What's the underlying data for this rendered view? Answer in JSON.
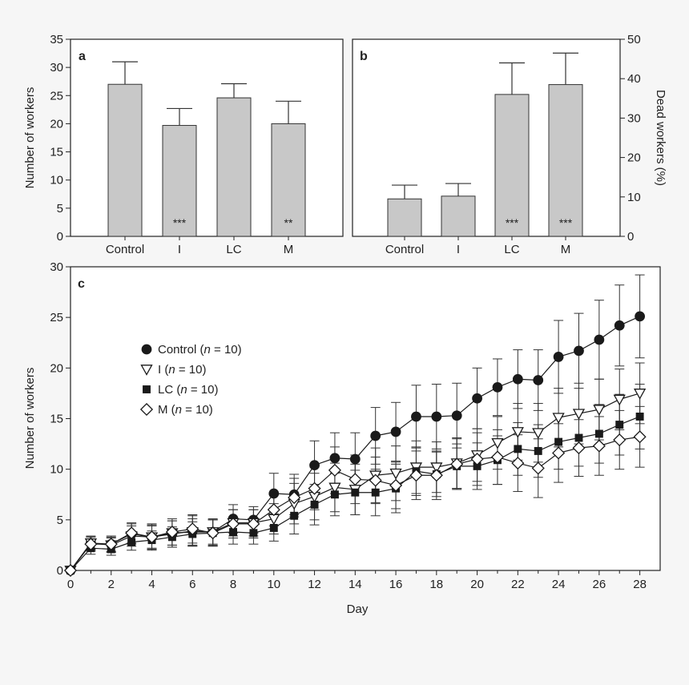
{
  "chart_data": [
    {
      "type": "bar",
      "panel": "a",
      "categories": [
        "Control",
        "I",
        "LC",
        "M"
      ],
      "values": [
        27.0,
        19.7,
        24.6,
        20.0
      ],
      "errors": [
        4.0,
        3.0,
        2.5,
        4.0
      ],
      "annotations": [
        "",
        "***",
        "",
        "**"
      ],
      "ylabel": "Number of workers",
      "ylim": [
        0,
        35
      ],
      "yticks": [
        0,
        5,
        10,
        15,
        20,
        25,
        30,
        35
      ],
      "bar_color": "#c8c8c8"
    },
    {
      "type": "bar",
      "panel": "b",
      "categories": [
        "Control",
        "I",
        "LC",
        "M"
      ],
      "values": [
        9.5,
        10.2,
        36.0,
        38.5
      ],
      "errors": [
        3.5,
        3.2,
        8.0,
        8.0
      ],
      "annotations": [
        "",
        "",
        "***",
        "***"
      ],
      "ylabel": "Dead workers (%)",
      "ylim": [
        0,
        50
      ],
      "yticks": [
        0,
        10,
        20,
        30,
        40,
        50
      ],
      "bar_color": "#c8c8c8"
    },
    {
      "type": "line",
      "panel": "c",
      "xlabel": "Day",
      "ylabel": "Number of workers",
      "xlim": [
        0,
        29
      ],
      "ylim": [
        0,
        30
      ],
      "xticks": [
        0,
        2,
        4,
        6,
        8,
        10,
        12,
        14,
        16,
        18,
        20,
        22,
        24,
        26,
        28
      ],
      "yticks": [
        0,
        5,
        10,
        15,
        20,
        25,
        30
      ],
      "x": [
        0,
        1,
        2,
        3,
        4,
        5,
        6,
        7,
        8,
        9,
        10,
        11,
        12,
        13,
        14,
        15,
        16,
        17,
        18,
        19,
        20,
        21,
        22,
        23,
        24,
        25,
        26,
        27,
        28
      ],
      "series": [
        {
          "legend": "Control (n = 10)",
          "marker": "circle",
          "values": [
            0,
            2.7,
            2.6,
            3.6,
            3.3,
            3.6,
            3.9,
            3.8,
            5.1,
            5.0,
            7.6,
            7.5,
            10.4,
            11.1,
            11.0,
            13.3,
            13.7,
            15.2,
            15.2,
            15.3,
            17.0,
            18.1,
            18.9,
            18.8,
            21.1,
            21.7,
            22.8,
            24.2,
            25.1
          ],
          "errors": [
            0,
            0.7,
            0.7,
            1.0,
            1.2,
            1.3,
            1.5,
            1.3,
            1.4,
            1.3,
            2.0,
            2.0,
            2.4,
            2.5,
            2.6,
            2.8,
            2.9,
            3.1,
            3.2,
            3.2,
            3.0,
            2.8,
            2.9,
            3.0,
            3.6,
            3.7,
            3.9,
            4.0,
            4.1
          ]
        },
        {
          "legend": "I (n = 10)",
          "marker": "triangle-down",
          "values": [
            0,
            2.7,
            2.5,
            3.4,
            3.3,
            3.7,
            3.8,
            3.8,
            4.7,
            4.7,
            5.1,
            6.6,
            7.3,
            8.2,
            8.0,
            9.4,
            9.6,
            10.2,
            10.2,
            10.6,
            11.4,
            12.6,
            13.7,
            13.6,
            15.1,
            15.5,
            15.9,
            16.9,
            17.5
          ],
          "errors": [
            0,
            0.6,
            0.7,
            1.0,
            1.1,
            1.2,
            1.3,
            1.2,
            1.3,
            1.3,
            1.5,
            2.0,
            2.3,
            2.4,
            2.5,
            2.7,
            2.7,
            2.6,
            2.5,
            2.5,
            2.6,
            2.6,
            2.8,
            2.9,
            2.9,
            3.0,
            3.0,
            3.0,
            3.0
          ]
        },
        {
          "legend": "LC (n = 10)",
          "marker": "square",
          "values": [
            0,
            2.2,
            2.1,
            2.8,
            3.0,
            3.3,
            3.6,
            3.7,
            3.8,
            3.7,
            4.2,
            5.4,
            6.5,
            7.5,
            7.7,
            7.7,
            8.1,
            9.8,
            9.5,
            10.3,
            10.3,
            10.9,
            12.0,
            11.8,
            12.7,
            13.1,
            13.5,
            14.4,
            15.2
          ],
          "errors": [
            0,
            0.6,
            0.6,
            0.8,
            0.9,
            1.0,
            1.2,
            1.3,
            1.2,
            1.1,
            1.3,
            1.8,
            2.0,
            2.1,
            2.2,
            2.3,
            2.4,
            2.4,
            2.2,
            2.2,
            2.3,
            2.4,
            2.6,
            2.6,
            2.7,
            2.8,
            2.9,
            3.0,
            3.2
          ]
        },
        {
          "legend": "M (n = 10)",
          "marker": "diamond",
          "values": [
            0,
            2.6,
            2.6,
            3.7,
            3.3,
            3.8,
            4.1,
            3.7,
            4.6,
            4.6,
            6.0,
            7.2,
            8.1,
            9.9,
            9.0,
            8.9,
            8.4,
            9.4,
            9.4,
            10.5,
            11.0,
            11.2,
            10.6,
            10.1,
            11.6,
            12.1,
            12.3,
            12.9,
            13.2
          ],
          "errors": [
            0,
            0.7,
            0.8,
            1.0,
            1.3,
            1.3,
            1.4,
            1.3,
            1.4,
            1.4,
            1.6,
            1.9,
            2.1,
            2.3,
            2.4,
            2.3,
            2.3,
            2.4,
            2.4,
            2.5,
            2.6,
            2.7,
            2.8,
            2.9,
            2.9,
            2.8,
            2.9,
            2.9,
            3.0
          ]
        }
      ]
    }
  ],
  "legend_labels": [
    {
      "name": "Control",
      "n": "10"
    },
    {
      "name": "I",
      "n": "10"
    },
    {
      "name": "LC",
      "n": "10"
    },
    {
      "name": "M",
      "n": "10"
    }
  ],
  "panel_labels": {
    "a": "a",
    "b": "b",
    "c": "c"
  },
  "legend_n_symbol": "n",
  "legend_n_eq": " = "
}
